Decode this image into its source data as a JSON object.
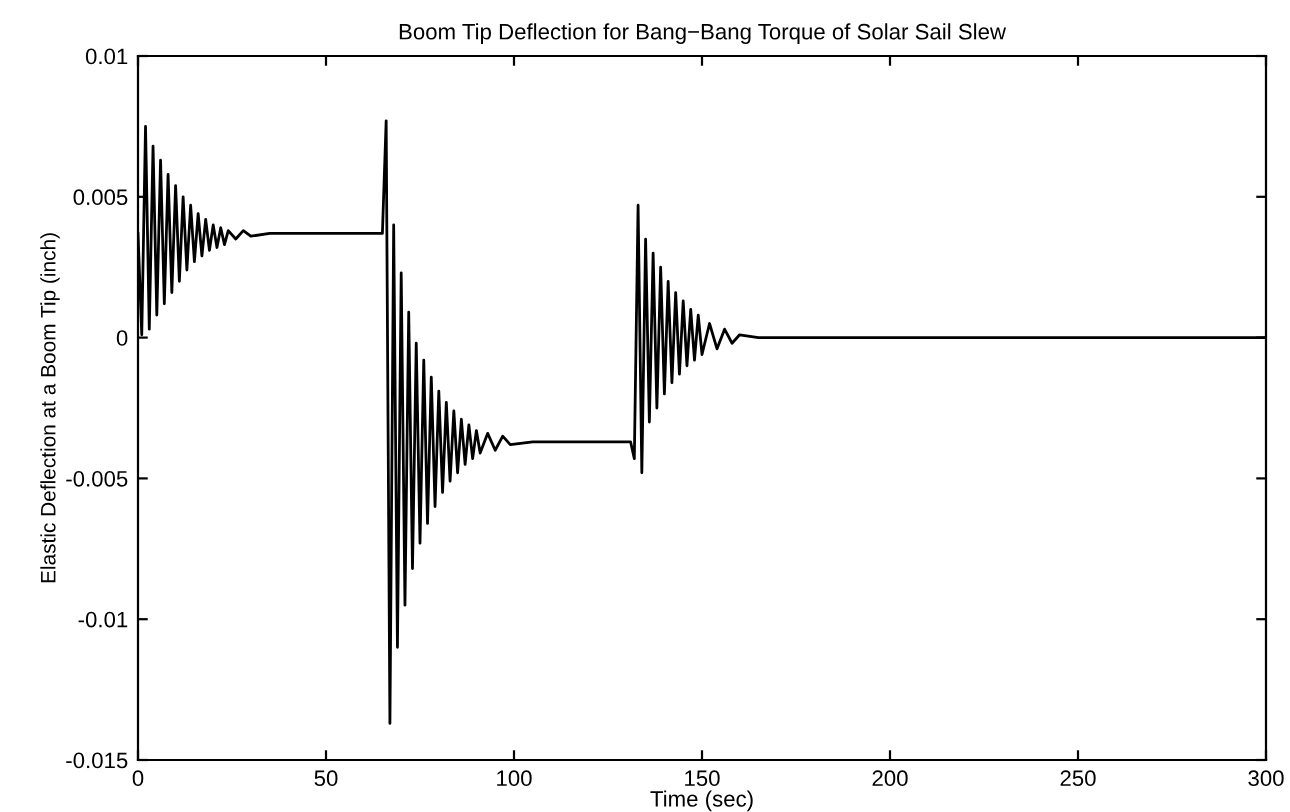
{
  "chart_data": {
    "type": "line",
    "title": "Boom Tip Deflection for Bang−Bang Torque of Solar Sail Slew",
    "xlabel": "Time (sec)",
    "ylabel": "Elastic Deflection at a Boom Tip (inch)",
    "x": [
      0,
      1,
      2,
      3,
      4,
      5,
      6,
      7,
      8,
      9,
      10,
      11,
      12,
      13,
      14,
      15,
      16,
      17,
      18,
      19,
      20,
      21,
      22,
      23,
      24,
      26,
      28,
      30,
      35,
      65,
      66,
      67,
      68,
      69,
      70,
      71,
      72,
      73,
      74,
      75,
      76,
      77,
      78,
      79,
      80,
      81,
      82,
      83,
      84,
      85,
      86,
      87,
      88,
      89,
      90,
      91,
      93,
      95,
      97,
      99,
      105,
      131,
      132,
      133,
      134,
      135,
      136,
      137,
      138,
      139,
      140,
      141,
      142,
      143,
      144,
      145,
      146,
      147,
      148,
      149,
      150,
      152,
      154,
      156,
      158,
      160,
      165,
      300
    ],
    "series": [
      {
        "color": "#000000",
        "values": [
          0.0037,
          0.0001,
          0.0075,
          0.0003,
          0.0068,
          0.0008,
          0.0063,
          0.0012,
          0.0058,
          0.0016,
          0.0054,
          0.002,
          0.005,
          0.0024,
          0.0047,
          0.0027,
          0.0044,
          0.0029,
          0.0042,
          0.0031,
          0.004,
          0.0032,
          0.0039,
          0.0033,
          0.0038,
          0.0035,
          0.0038,
          0.0036,
          0.0037,
          0.0037,
          0.0077,
          -0.0137,
          0.004,
          -0.011,
          0.0023,
          -0.0095,
          0.0009,
          -0.0082,
          -0.0002,
          -0.0073,
          -0.0008,
          -0.0066,
          -0.0014,
          -0.006,
          -0.0019,
          -0.0055,
          -0.0023,
          -0.0051,
          -0.0026,
          -0.0048,
          -0.0029,
          -0.0045,
          -0.0031,
          -0.0043,
          -0.0033,
          -0.0041,
          -0.0034,
          -0.004,
          -0.0035,
          -0.0038,
          -0.0037,
          -0.0037,
          -0.0043,
          0.0047,
          -0.0048,
          0.0035,
          -0.003,
          0.003,
          -0.0025,
          0.0025,
          -0.002,
          0.002,
          -0.0016,
          0.0016,
          -0.0013,
          0.0013,
          -0.001,
          0.001,
          -0.0008,
          0.0008,
          -0.0006,
          0.0005,
          -0.0004,
          0.0003,
          -0.0002,
          0.0001,
          0,
          0
        ]
      }
    ],
    "xlim": [
      0,
      300
    ],
    "ylim": [
      -0.015,
      0.01
    ],
    "xticks": [
      0,
      50,
      100,
      150,
      200,
      250,
      300
    ],
    "yticks": [
      -0.015,
      -0.01,
      -0.005,
      0,
      0.005,
      0.01
    ],
    "grid": false,
    "marker": "none",
    "line_style": "solid"
  }
}
